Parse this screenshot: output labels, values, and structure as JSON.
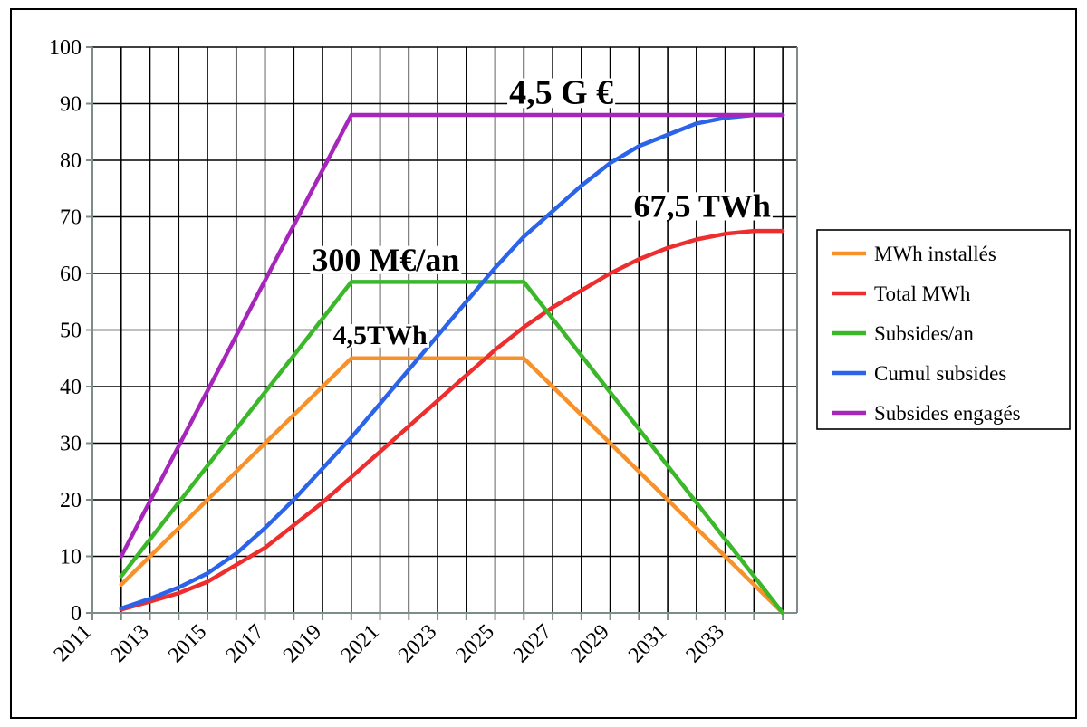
{
  "chart_data": {
    "type": "line",
    "title": "",
    "xlabel": "",
    "ylabel": "",
    "xlim": [
      2011,
      2035.5
    ],
    "ylim": [
      0,
      100
    ],
    "yticks": [
      0,
      10,
      20,
      30,
      40,
      50,
      60,
      70,
      80,
      90,
      100
    ],
    "xtick_labels": [
      "2011",
      "2013",
      "2015",
      "2017",
      "2019",
      "2021",
      "2023",
      "2025",
      "2027",
      "2029",
      "2031",
      "2033"
    ],
    "grid": true,
    "legend_position": "right",
    "series": [
      {
        "name": "MWh installés",
        "color": "#f7922a",
        "points": [
          [
            2012,
            5
          ],
          [
            2020,
            45
          ],
          [
            2026,
            45
          ],
          [
            2035,
            0
          ]
        ]
      },
      {
        "name": "Total MWh",
        "color": "#ee2e2e",
        "points": [
          [
            2012,
            0.6
          ],
          [
            2013,
            2
          ],
          [
            2014,
            3.5
          ],
          [
            2015,
            5.5
          ],
          [
            2016,
            8.5
          ],
          [
            2017,
            11.5
          ],
          [
            2018,
            15.5
          ],
          [
            2019,
            19.5
          ],
          [
            2020,
            24
          ],
          [
            2021,
            28.5
          ],
          [
            2022,
            33
          ],
          [
            2023,
            37.5
          ],
          [
            2024,
            42
          ],
          [
            2025,
            46.5
          ],
          [
            2026,
            50.5
          ],
          [
            2027,
            54
          ],
          [
            2028,
            57
          ],
          [
            2029,
            60
          ],
          [
            2030,
            62.5
          ],
          [
            2031,
            64.5
          ],
          [
            2032,
            66
          ],
          [
            2033,
            67
          ],
          [
            2034,
            67.5
          ],
          [
            2035,
            67.5
          ]
        ]
      },
      {
        "name": "Subsides/an",
        "color": "#3ab82a",
        "points": [
          [
            2012,
            6.5
          ],
          [
            2020,
            58.5
          ],
          [
            2026,
            58.5
          ],
          [
            2035,
            0
          ]
        ]
      },
      {
        "name": "Cumul subsides",
        "color": "#2b63e9",
        "points": [
          [
            2012,
            0.8
          ],
          [
            2013,
            2.5
          ],
          [
            2014,
            4.5
          ],
          [
            2015,
            7
          ],
          [
            2016,
            10.5
          ],
          [
            2017,
            15
          ],
          [
            2018,
            20
          ],
          [
            2019,
            25.5
          ],
          [
            2020,
            31
          ],
          [
            2021,
            37
          ],
          [
            2022,
            43
          ],
          [
            2023,
            49
          ],
          [
            2024,
            55
          ],
          [
            2025,
            61
          ],
          [
            2026,
            66.5
          ],
          [
            2027,
            71
          ],
          [
            2028,
            75.5
          ],
          [
            2029,
            79.5
          ],
          [
            2030,
            82.5
          ],
          [
            2031,
            84.5
          ],
          [
            2032,
            86.5
          ],
          [
            2033,
            87.5
          ],
          [
            2034,
            88
          ],
          [
            2035,
            88
          ]
        ]
      },
      {
        "name": "Subsides engagés",
        "color": "#a626bb",
        "points": [
          [
            2012,
            10
          ],
          [
            2020,
            88
          ],
          [
            2035,
            88
          ]
        ]
      }
    ],
    "annotations": [
      {
        "text": "4,5 G €",
        "x": 2027.3,
        "y": 90,
        "size": 38
      },
      {
        "text": "67,5 TWh",
        "x": 2032.2,
        "y": 70,
        "size": 36
      },
      {
        "text": "300 M€/an",
        "x": 2021.2,
        "y": 60.5,
        "size": 36
      },
      {
        "text": "4,5TWh",
        "x": 2021,
        "y": 47.5,
        "size": 30
      }
    ]
  }
}
